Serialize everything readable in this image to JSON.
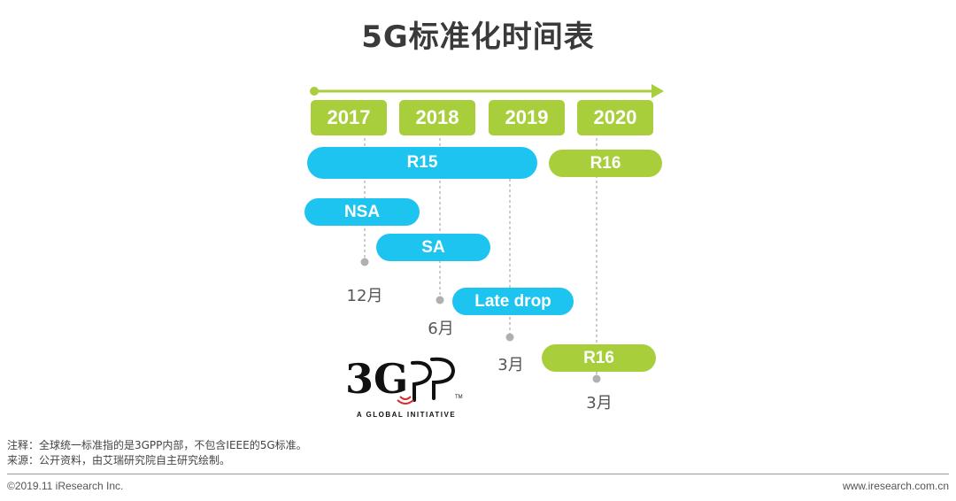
{
  "title": "5G标准化时间表",
  "colors": {
    "green": "#a8cf3b",
    "blue": "#1cc4ef",
    "arrow": "#a8cf3b",
    "dashed": "#aaaaaa",
    "dot": "#b0b0b0"
  },
  "years": [
    "2017",
    "2018",
    "2019",
    "2020"
  ],
  "releases": {
    "r15": "R15",
    "r16_top": "R16",
    "nsa": "NSA",
    "sa": "SA",
    "late_drop": "Late drop",
    "r16_bottom": "R16"
  },
  "milestones": {
    "nsa": "12月",
    "sa": "6月",
    "late_drop": "3月",
    "r16": "3月"
  },
  "logo": {
    "mark": "3GPP",
    "tagline": "A GLOBAL INITIATIVE"
  },
  "notes": {
    "note": "注释：全球统一标准指的是3GPP内部，不包含IEEE的5G标准。",
    "source": "来源：公开资料，由艾瑞研究院自主研究绘制。"
  },
  "footer": {
    "copyright": "©2019.11 iResearch Inc.",
    "website": "www.iresearch.com.cn"
  }
}
